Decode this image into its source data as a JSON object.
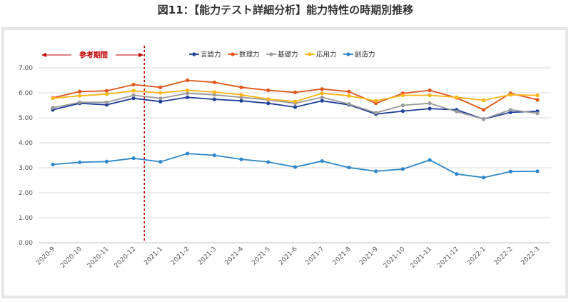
{
  "title": "図11：【能力テスト詳細分析】能力特性の時期別推移",
  "chart_data": {
    "type": "line",
    "categories": [
      "2020-9",
      "2020-10",
      "2020-11",
      "2020-12",
      "2021-1",
      "2021-2",
      "2021-3",
      "2021-4",
      "2021-5",
      "2021-6",
      "2021-7",
      "2021-8",
      "2021-9",
      "2021-10",
      "2021-11",
      "2021-12",
      "2022-1",
      "2022-2",
      "2022-3"
    ],
    "ylim": [
      0,
      7
    ],
    "yticks": [
      "0.00",
      "1.00",
      "2.00",
      "3.00",
      "4.00",
      "5.00",
      "6.00",
      "7.00"
    ],
    "legend_position": "top",
    "grid": true,
    "reference": {
      "label": "参考期間",
      "after_category": "2020-12"
    },
    "series": [
      {
        "name": "言語力",
        "color": "#1f3f99",
        "values": [
          5.32,
          5.58,
          5.52,
          5.78,
          5.65,
          5.82,
          5.74,
          5.68,
          5.58,
          5.43,
          5.68,
          5.52,
          5.15,
          5.27,
          5.37,
          5.32,
          4.95,
          5.22,
          5.26
        ]
      },
      {
        "name": "数理力",
        "color": "#e0561c",
        "values": [
          5.8,
          6.05,
          6.08,
          6.33,
          6.22,
          6.5,
          6.42,
          6.22,
          6.1,
          6.02,
          6.15,
          6.05,
          5.58,
          5.98,
          6.1,
          5.8,
          5.32,
          5.98,
          5.72
        ]
      },
      {
        "name": "基礎力",
        "color": "#9a9a9a",
        "values": [
          5.4,
          5.62,
          5.62,
          5.9,
          5.78,
          5.98,
          5.92,
          5.82,
          5.72,
          5.58,
          5.82,
          5.55,
          5.2,
          5.5,
          5.58,
          5.25,
          4.95,
          5.32,
          5.18
        ]
      },
      {
        "name": "応用力",
        "color": "#fdb515",
        "values": [
          5.78,
          5.88,
          5.95,
          6.08,
          6.0,
          6.1,
          6.03,
          5.92,
          5.75,
          5.65,
          5.98,
          5.88,
          5.68,
          5.9,
          5.9,
          5.82,
          5.7,
          5.92,
          5.9
        ]
      },
      {
        "name": "創造力",
        "color": "#2f86c8",
        "values": [
          3.13,
          3.22,
          3.25,
          3.38,
          3.24,
          3.57,
          3.5,
          3.34,
          3.23,
          3.03,
          3.27,
          3.01,
          2.86,
          2.95,
          3.31,
          2.75,
          2.61,
          2.85,
          2.86
        ]
      }
    ]
  }
}
